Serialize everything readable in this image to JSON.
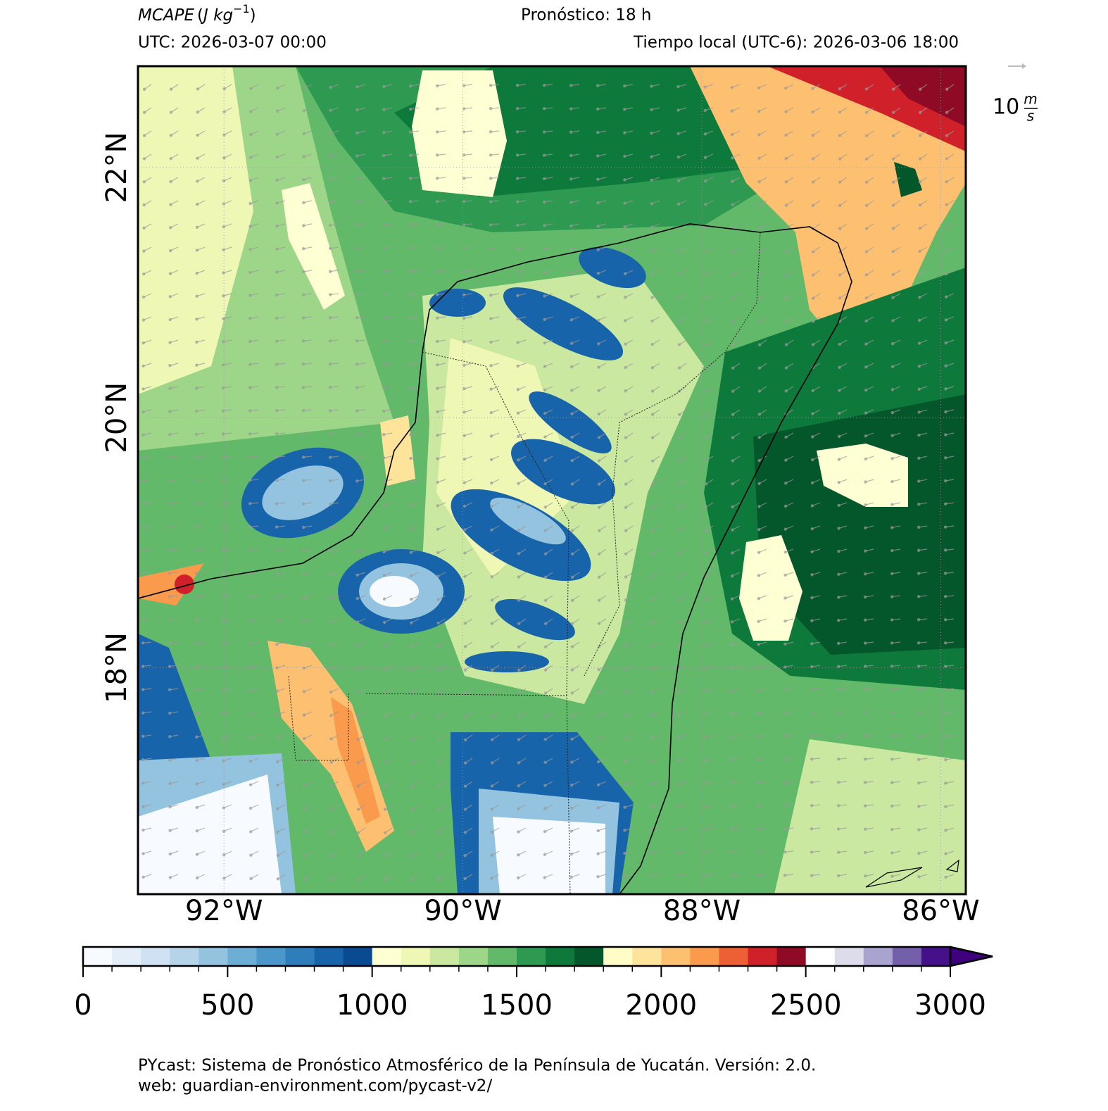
{
  "header": {
    "title": [
      "MCAPE",
      "(",
      "J kg",
      "−1",
      ")"
    ],
    "forecast": "Pronóstico: 18 h",
    "utc": "UTC:  2026-03-07 00:00",
    "local": "Tiempo local (UTC-6): 2026-03-06 18:00"
  },
  "map": {
    "xlim": [
      -92.72,
      -85.79
    ],
    "ylim": [
      16.19,
      22.81
    ],
    "lon_ticks": [
      {
        "value": -92,
        "label": "92°W"
      },
      {
        "value": -90,
        "label": "90°W"
      },
      {
        "value": -88,
        "label": "88°W"
      },
      {
        "value": -86,
        "label": "86°W"
      }
    ],
    "lat_ticks": [
      {
        "value": 18,
        "label": "18°N"
      },
      {
        "value": 20,
        "label": "20°N"
      },
      {
        "value": 22,
        "label": "22°N"
      }
    ],
    "wind_key": {
      "value": "10",
      "unit_num": "m",
      "unit_den": "s"
    }
  },
  "colorbar": {
    "lim": [
      0,
      3000
    ],
    "ticks": [
      0,
      500,
      1000,
      1500,
      2000,
      2500,
      3000
    ],
    "colors": [
      "#f7fbff",
      "#e3eef9",
      "#cfe1f2",
      "#b5d4e9",
      "#93c3df",
      "#6daed5",
      "#4b97c9",
      "#2f7ebc",
      "#1864aa",
      "#0a4a90",
      "#ffffd4",
      "#eef7b4",
      "#cbe8a0",
      "#9ed689",
      "#62b96a",
      "#2e9950",
      "#0d7a3c",
      "#03572b",
      "#fffcc8",
      "#fee39a",
      "#fdc070",
      "#f99a4d",
      "#ef5f35",
      "#d0202a",
      "#8f0a25",
      "#ffffff",
      "#dcdcea",
      "#a9a3cf",
      "#7460aa",
      "#45108a"
    ],
    "extend_color": "#3f007d"
  },
  "footer": {
    "line1": "PYcast: Sistema de Pronóstico Atmosférico de la Península de Yucatán. Versión: 2.0.",
    "line2": "web: guardian-environment.com/pycast-v2/"
  }
}
